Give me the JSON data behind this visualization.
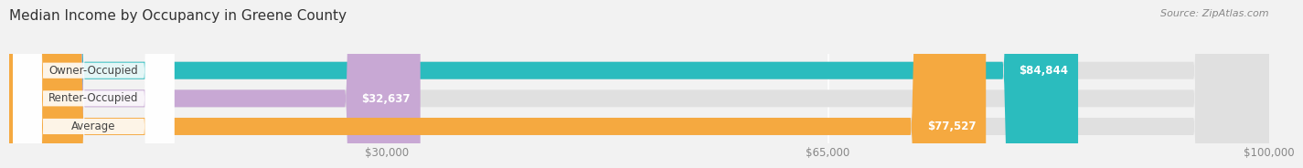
{
  "title": "Median Income by Occupancy in Greene County",
  "source": "Source: ZipAtlas.com",
  "categories": [
    "Owner-Occupied",
    "Renter-Occupied",
    "Average"
  ],
  "values": [
    84844,
    32637,
    77527
  ],
  "bar_colors": [
    "#2bbcbe",
    "#c8a8d4",
    "#f5a940"
  ],
  "value_labels": [
    "$84,844",
    "$32,637",
    "$77,527"
  ],
  "xlim": [
    0,
    100000
  ],
  "xticks": [
    30000,
    65000,
    100000
  ],
  "xticklabels": [
    "$30,000",
    "$65,000",
    "$100,000"
  ],
  "bar_height": 0.62,
  "label_fontsize": 8.5,
  "title_fontsize": 11,
  "source_fontsize": 8,
  "background_color": "#f2f2f2",
  "bar_bg_color": "#e0e0e0"
}
